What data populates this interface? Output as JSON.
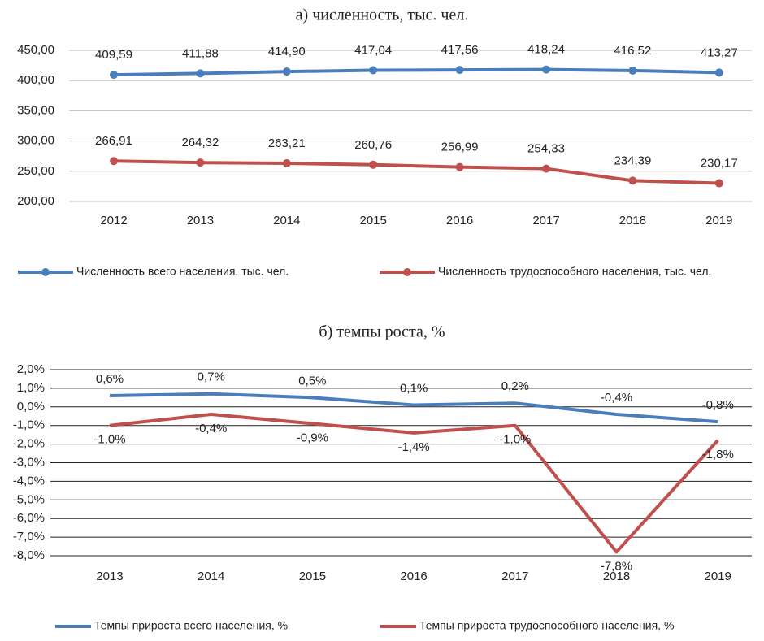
{
  "chart_data": [
    {
      "type": "line",
      "title": "а) численность, тыс. чел.",
      "markers": true,
      "categories": [
        "2012",
        "2013",
        "2014",
        "2015",
        "2016",
        "2017",
        "2018",
        "2019"
      ],
      "series": [
        {
          "name": "Численность всего населения, тыс. чел.",
          "color": "#4a7ebb",
          "values": [
            409.59,
            411.88,
            414.9,
            417.04,
            417.56,
            418.24,
            416.52,
            413.27
          ],
          "value_labels": [
            "409,59",
            "411,88",
            "414,90",
            "417,04",
            "417,56",
            "418,24",
            "416,52",
            "413,27"
          ]
        },
        {
          "name": "Численность трудоспособного населения, тыс. чел.",
          "color": "#c0504d",
          "values": [
            266.91,
            264.32,
            263.21,
            260.76,
            256.99,
            254.33,
            234.39,
            230.17
          ],
          "value_labels": [
            "266,91",
            "264,32",
            "263,21",
            "260,76",
            "256,99",
            "254,33",
            "234,39",
            "230,17"
          ]
        }
      ],
      "ylim": [
        200,
        450
      ],
      "yticks": [
        {
          "value": 200,
          "label": "200,00"
        },
        {
          "value": 250,
          "label": "250,00"
        },
        {
          "value": 300,
          "label": "300,00"
        },
        {
          "value": 350,
          "label": "350,00"
        },
        {
          "value": 400,
          "label": "400,00"
        },
        {
          "value": 450,
          "label": "450,00"
        }
      ],
      "grid": true
    },
    {
      "type": "line",
      "title": "б) темпы роста, %",
      "markers": false,
      "categories": [
        "2013",
        "2014",
        "2015",
        "2016",
        "2017",
        "2018",
        "2019"
      ],
      "series": [
        {
          "name": "Темпы прироста всего населения, %",
          "color": "#4a7ebb",
          "values": [
            0.6,
            0.7,
            0.5,
            0.1,
            0.2,
            -0.4,
            -0.8
          ],
          "value_labels": [
            "0,6%",
            "0,7%",
            "0,5%",
            "0,1%",
            "0,2%",
            "-0,4%",
            "-0,8%"
          ]
        },
        {
          "name": "Темпы прироста трудоспособного населения, %",
          "color": "#c0504d",
          "values": [
            -1.0,
            -0.4,
            -0.9,
            -1.4,
            -1.0,
            -7.8,
            -1.8
          ],
          "value_labels": [
            "-1,0%",
            "-0,4%",
            "-0,9%",
            "-1,4%",
            "-1,0%",
            "-7,8%",
            "-1,8%"
          ]
        }
      ],
      "ylim": [
        -8,
        2
      ],
      "yticks": [
        {
          "value": -8,
          "label": "-8,0%"
        },
        {
          "value": -7,
          "label": "-7,0%"
        },
        {
          "value": -6,
          "label": "-6,0%"
        },
        {
          "value": -5,
          "label": "-5,0%"
        },
        {
          "value": -4,
          "label": "-4,0%"
        },
        {
          "value": -3,
          "label": "-3,0%"
        },
        {
          "value": -2,
          "label": "-2,0%"
        },
        {
          "value": -1,
          "label": "-1,0%"
        },
        {
          "value": 0,
          "label": "0,0%"
        },
        {
          "value": 1,
          "label": "1,0%"
        },
        {
          "value": 2,
          "label": "2,0%"
        }
      ],
      "grid": true
    }
  ]
}
